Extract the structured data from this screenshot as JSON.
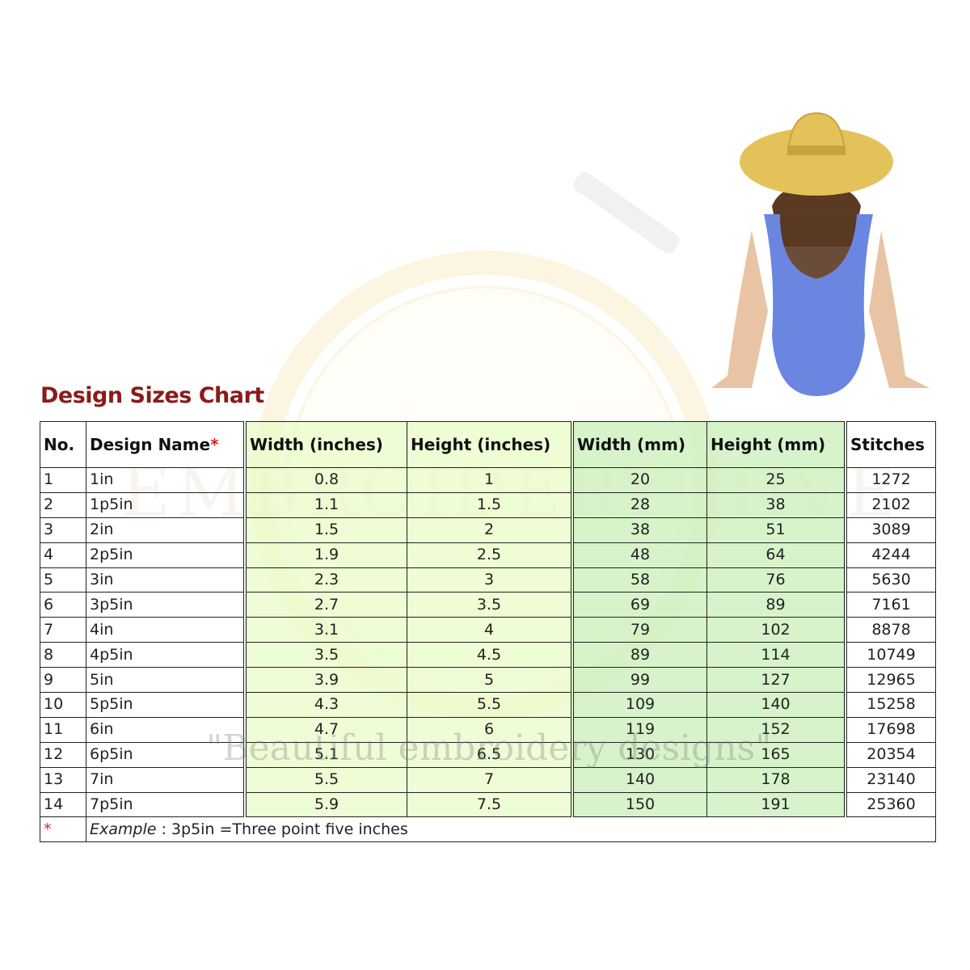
{
  "title": "Design Sizes Chart",
  "watermark": {
    "brand": "EMBROIDERY HIVE",
    "tagline": "\"Beautiful embroidery designs\""
  },
  "colors": {
    "title": "#8b1a1a",
    "inches_cols": "#e8fcc8",
    "mm_cols": "#cdf0be",
    "asterisk": "#e02020"
  },
  "table": {
    "headers": [
      "No.",
      "Design Name",
      "Width (inches)",
      "Height (inches)",
      "Width (mm)",
      "Height (mm)",
      "Stitches"
    ],
    "header_asterisk": "*",
    "rows": [
      [
        "1",
        "1in",
        "0.8",
        "1",
        "20",
        "25",
        "1272"
      ],
      [
        "2",
        "1p5in",
        "1.1",
        "1.5",
        "28",
        "38",
        "2102"
      ],
      [
        "3",
        "2in",
        "1.5",
        "2",
        "38",
        "51",
        "3089"
      ],
      [
        "4",
        "2p5in",
        "1.9",
        "2.5",
        "48",
        "64",
        "4244"
      ],
      [
        "5",
        "3in",
        "2.3",
        "3",
        "58",
        "76",
        "5630"
      ],
      [
        "6",
        "3p5in",
        "2.7",
        "3.5",
        "69",
        "89",
        "7161"
      ],
      [
        "7",
        "4in",
        "3.1",
        "4",
        "79",
        "102",
        "8878"
      ],
      [
        "8",
        "4p5in",
        "3.5",
        "4.5",
        "89",
        "114",
        "10749"
      ],
      [
        "9",
        "5in",
        "3.9",
        "5",
        "99",
        "127",
        "12965"
      ],
      [
        "10",
        "5p5in",
        "4.3",
        "5.5",
        "109",
        "140",
        "15258"
      ],
      [
        "11",
        "6in",
        "4.7",
        "6",
        "119",
        "152",
        "17698"
      ],
      [
        "12",
        "6p5in",
        "5.1",
        "6.5",
        "130",
        "165",
        "20354"
      ],
      [
        "13",
        "7in",
        "5.5",
        "7",
        "140",
        "178",
        "23140"
      ],
      [
        "14",
        "7p5in",
        "5.9",
        "7.5",
        "150",
        "191",
        "25360"
      ]
    ],
    "footnote": {
      "marker": "*",
      "label": "Example",
      "text": " : 3p5in =Three point five inches"
    }
  }
}
